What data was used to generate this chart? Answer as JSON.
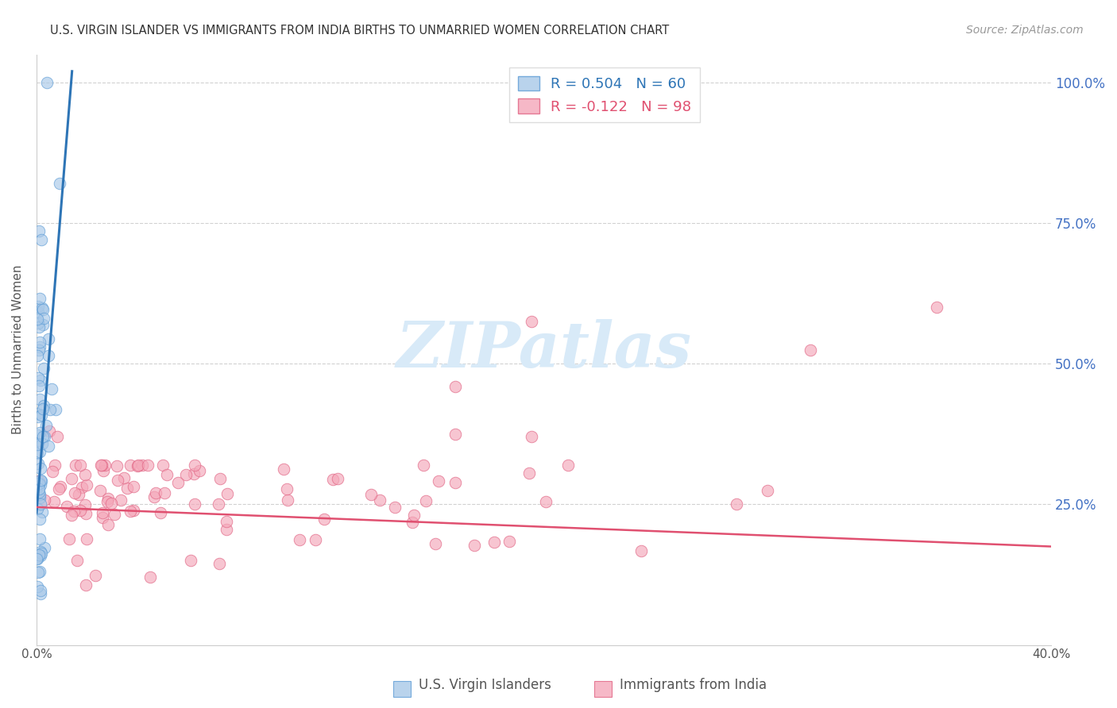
{
  "title": "U.S. VIRGIN ISLANDER VS IMMIGRANTS FROM INDIA BIRTHS TO UNMARRIED WOMEN CORRELATION CHART",
  "source": "Source: ZipAtlas.com",
  "ylabel": "Births to Unmarried Women",
  "R1": 0.504,
  "N1": 60,
  "R2": -0.122,
  "N2": 98,
  "blue_color": "#a8c8e8",
  "blue_edge_color": "#5b9bd5",
  "blue_line_color": "#2e75b6",
  "pink_color": "#f4a7b9",
  "pink_edge_color": "#e06080",
  "pink_line_color": "#e05070",
  "watermark_color": "#d8eaf8",
  "legend1_label": "U.S. Virgin Islanders",
  "legend2_label": "Immigrants from India",
  "xlim": [
    0.0,
    0.4
  ],
  "ylim": [
    0.0,
    1.05
  ],
  "blue_trend_x": [
    0.0,
    0.014
  ],
  "blue_trend_y": [
    0.235,
    1.02
  ],
  "pink_trend_x": [
    0.0,
    0.4
  ],
  "pink_trend_y": [
    0.245,
    0.175
  ]
}
